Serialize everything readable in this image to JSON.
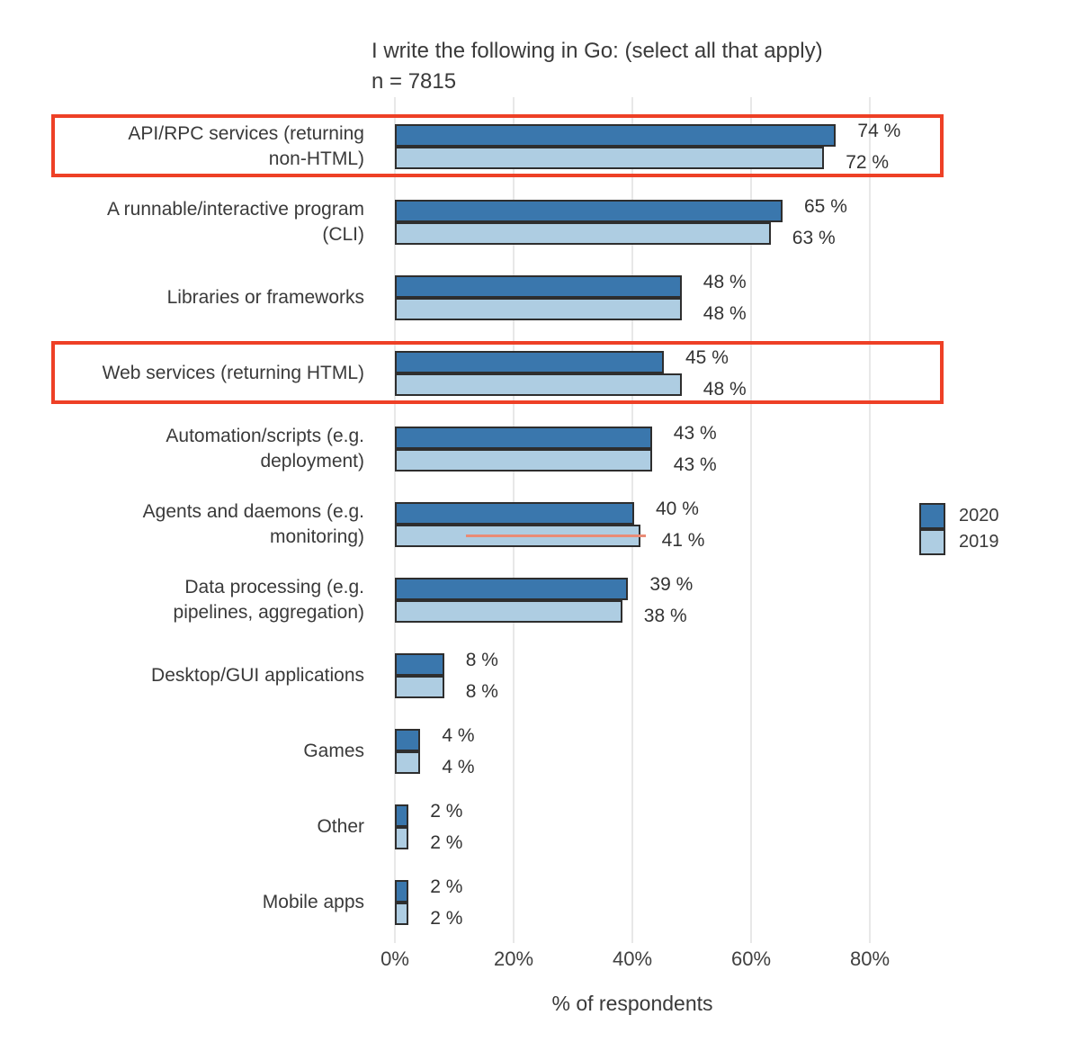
{
  "chart_data": {
    "type": "bar",
    "orientation": "horizontal",
    "title": "I write the following in Go: (select all that apply)",
    "subtitle": "n = 7815",
    "xlabel": "% of respondents",
    "xlim": [
      0,
      88
    ],
    "grid": true,
    "legend_position": "right",
    "value_suffix": " %",
    "x_ticks": [
      {
        "label": "0%",
        "value": 0
      },
      {
        "label": "20%",
        "value": 20
      },
      {
        "label": "40%",
        "value": 40
      },
      {
        "label": "60%",
        "value": 60
      },
      {
        "label": "80%",
        "value": 80
      }
    ],
    "categories": [
      [
        "API/RPC services (returning",
        "non-HTML)"
      ],
      [
        "A runnable/interactive program",
        "(CLI)"
      ],
      [
        "Libraries or frameworks"
      ],
      [
        "Web services (returning HTML)"
      ],
      [
        "Automation/scripts (e.g.",
        "deployment)"
      ],
      [
        "Agents and daemons (e.g.",
        "monitoring)"
      ],
      [
        "Data processing (e.g.",
        "pipelines, aggregation)"
      ],
      [
        "Desktop/GUI applications"
      ],
      [
        "Games"
      ],
      [
        "Other"
      ],
      [
        "Mobile apps"
      ]
    ],
    "series": [
      {
        "name": "2020",
        "color": "#3a77ad",
        "values": [
          74,
          65,
          48,
          45,
          43,
          40,
          39,
          8,
          4,
          2,
          2
        ]
      },
      {
        "name": "2019",
        "color": "#aecde2",
        "values": [
          72,
          63,
          48,
          48,
          43,
          41,
          38,
          8,
          4,
          2,
          2
        ]
      }
    ],
    "annotations": {
      "highlight_box_color": "#ee4026",
      "highlighted_categories": [
        0,
        3
      ],
      "strike_line": {
        "category_index": 5,
        "series": "2019",
        "from_pct": 12,
        "to_pct": 42.3,
        "color": "#e98b76"
      }
    }
  }
}
